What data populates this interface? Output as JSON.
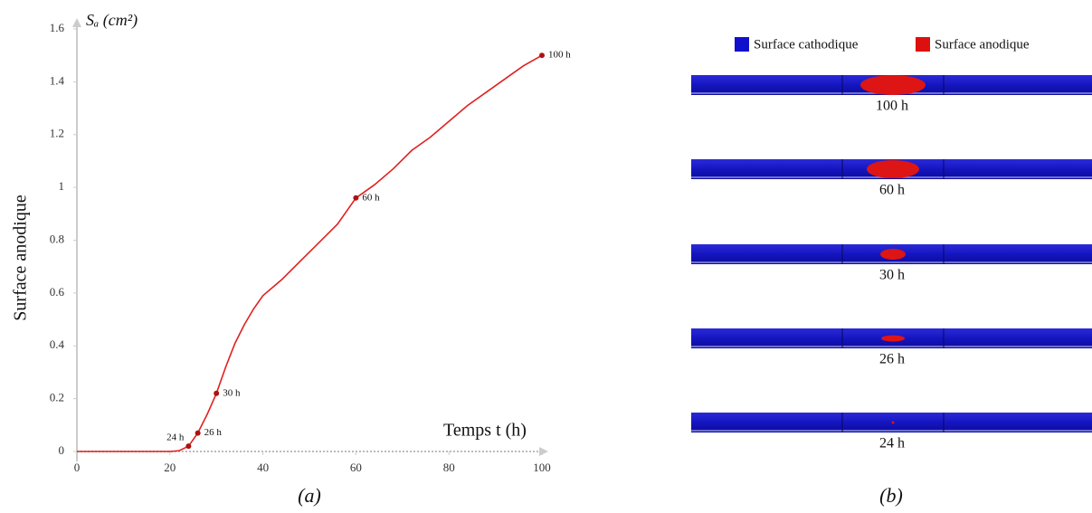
{
  "chart_data": {
    "type": "line",
    "y_axis_title": "Sₐ (cm²)",
    "y_label": "Surface anodique",
    "x_label": "Temps t (h)",
    "x": [
      0,
      5,
      10,
      15,
      20,
      22,
      24,
      26,
      28,
      30,
      32,
      34,
      36,
      38,
      40,
      44,
      48,
      52,
      56,
      60,
      64,
      68,
      72,
      76,
      80,
      84,
      88,
      92,
      96,
      100
    ],
    "values": [
      0,
      0,
      0,
      0,
      0,
      0.003,
      0.02,
      0.07,
      0.14,
      0.22,
      0.32,
      0.41,
      0.48,
      0.54,
      0.59,
      0.65,
      0.72,
      0.79,
      0.86,
      0.96,
      1.01,
      1.07,
      1.14,
      1.19,
      1.25,
      1.31,
      1.36,
      1.41,
      1.46,
      1.5
    ],
    "color": "#e02020",
    "annotations": [
      {
        "x": 24,
        "y": 0.02,
        "label": "24 h"
      },
      {
        "x": 26,
        "y": 0.07,
        "label": "26 h"
      },
      {
        "x": 30,
        "y": 0.22,
        "label": "30 h"
      },
      {
        "x": 60,
        "y": 0.96,
        "label": "60 h"
      },
      {
        "x": 100,
        "y": 1.5,
        "label": "100 h"
      }
    ],
    "xlim": [
      0,
      100
    ],
    "xticks": [
      0,
      20,
      40,
      60,
      80,
      100
    ],
    "ylim": [
      0,
      1.6
    ],
    "yticks": [
      0,
      0.2,
      0.4,
      0.6,
      0.8,
      1,
      1.2,
      1.4,
      1.6
    ],
    "grid": false
  },
  "panel_b": {
    "legend": [
      {
        "name": "Surface cathodique",
        "color": "#1010cc"
      },
      {
        "name": "Surface anodique",
        "color": "#dd1010"
      }
    ],
    "snapshots": [
      "100 h",
      "60 h",
      "30 h",
      "26 h",
      "24 h"
    ]
  },
  "captions": [
    "(a)",
    "(b)"
  ]
}
